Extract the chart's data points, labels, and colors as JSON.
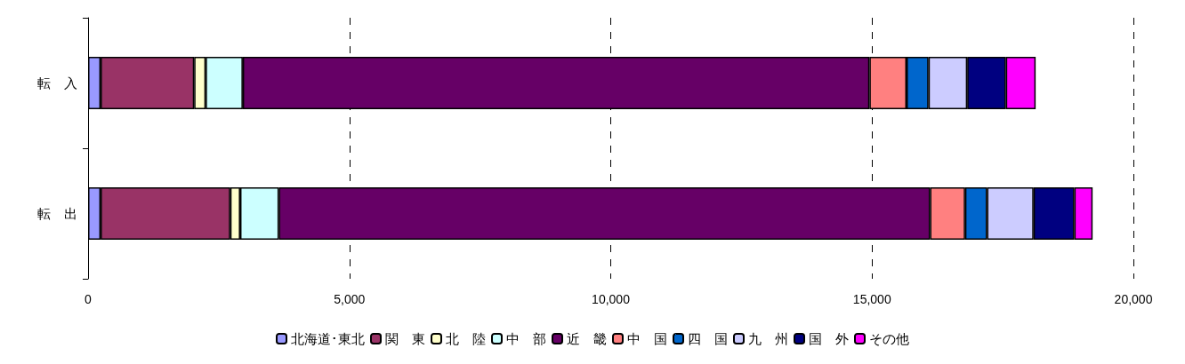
{
  "chart_data": {
    "type": "bar",
    "orientation": "horizontal",
    "stacked": true,
    "categories": [
      "転　入",
      "転　出"
    ],
    "series": [
      {
        "name": "北海道･東北",
        "color": "#9999ff",
        "values": [
          240,
          240
        ]
      },
      {
        "name": "関　東",
        "color": "#993366",
        "values": [
          1790,
          2480
        ]
      },
      {
        "name": "北　陸",
        "color": "#ffffcc",
        "values": [
          220,
          190
        ]
      },
      {
        "name": "中　部",
        "color": "#ccffff",
        "values": [
          710,
          740
        ]
      },
      {
        "name": "近　畿",
        "color": "#660066",
        "values": [
          11990,
          12460
        ]
      },
      {
        "name": "中　国",
        "color": "#ff8080",
        "values": [
          710,
          670
        ]
      },
      {
        "name": "四　国",
        "color": "#0066cc",
        "values": [
          420,
          420
        ]
      },
      {
        "name": "九　州",
        "color": "#ccccff",
        "values": [
          740,
          890
        ]
      },
      {
        "name": "国　外",
        "color": "#000080",
        "values": [
          740,
          780
        ]
      },
      {
        "name": "その他",
        "color": "#ff00ff",
        "values": [
          570,
          350
        ]
      }
    ],
    "xlim": [
      0,
      20000
    ],
    "xticks": [
      0,
      {
        "value": 5000,
        "label": "5,000"
      },
      {
        "value": 10000,
        "label": "10,000"
      },
      {
        "value": 15000,
        "label": "15,000"
      },
      {
        "value": 20000,
        "label": "20,000"
      }
    ],
    "grid": "x",
    "legend": "bottom"
  }
}
